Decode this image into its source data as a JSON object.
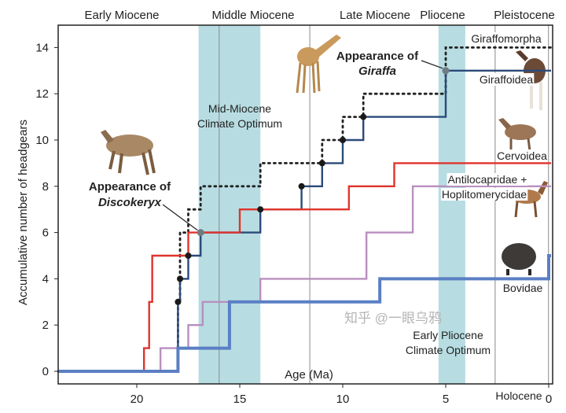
{
  "chart_data": {
    "type": "line",
    "step": true,
    "xlabel": "Age (Ma)",
    "ylabel": "Accumulative number of headgears",
    "xlim": [
      24,
      -0.2
    ],
    "ylim": [
      -0.55,
      15
    ],
    "x_reversed": true,
    "xticks": [
      20,
      15,
      10,
      5,
      0
    ],
    "yticks": [
      0,
      2,
      4,
      6,
      8,
      10,
      12,
      14
    ],
    "grid": false,
    "epochs": [
      {
        "label": "Early Miocene",
        "center": 20.5
      },
      {
        "label": "Middle Miocene",
        "center": 14.1
      },
      {
        "label": "Late Miocene",
        "center": 8.5
      },
      {
        "label": "Pliocene",
        "center": 4.5
      },
      {
        "label": "Pleistocene",
        "center": 1.5
      }
    ],
    "epoch_boundaries": [
      16.0,
      11.6,
      2.6,
      0.01
    ],
    "holocene_label": "Holocene",
    "climate_bands": [
      {
        "from": 17.0,
        "to": 14.0,
        "label1": "Mid-Miocene",
        "label2": "Climate Optimum"
      },
      {
        "from": 5.35,
        "to": 4.05,
        "label1": "Early Pliocene",
        "label2": "Climate Optimum"
      }
    ],
    "series": [
      {
        "name": "Giraffomorpha",
        "color": "#222222",
        "style": "dotted",
        "start": 0,
        "steps": [
          [
            18.0,
            3
          ],
          [
            17.9,
            6
          ],
          [
            17.5,
            7
          ],
          [
            16.9,
            8
          ],
          [
            14.0,
            9
          ],
          [
            11.0,
            10
          ],
          [
            10.0,
            11
          ],
          [
            9.0,
            12
          ],
          [
            5.0,
            14
          ]
        ]
      },
      {
        "name": "Giraffoidea",
        "color": "#2b4a7a",
        "style": "solid",
        "start": 0,
        "steps": [
          [
            18.0,
            3
          ],
          [
            17.9,
            4
          ],
          [
            17.5,
            5
          ],
          [
            16.9,
            6
          ],
          [
            14.0,
            7
          ],
          [
            12.0,
            8
          ],
          [
            11.0,
            9
          ],
          [
            10.0,
            10
          ],
          [
            9.0,
            11
          ],
          [
            5.0,
            13
          ]
        ]
      },
      {
        "name": "Cervoidea",
        "color": "#e0342c",
        "style": "solid",
        "start": 0,
        "steps": [
          [
            19.65,
            1
          ],
          [
            19.4,
            3
          ],
          [
            19.25,
            5
          ],
          [
            17.5,
            6
          ],
          [
            15.0,
            7
          ],
          [
            9.7,
            8
          ],
          [
            7.5,
            9
          ]
        ]
      },
      {
        "name": "Antilocapridae + Hoplitomerycidae",
        "name1": "Antilocapridae +",
        "name2": "Hoplitomerycidae",
        "color": "#b88fbf",
        "style": "solid",
        "start": 0,
        "steps": [
          [
            18.85,
            1
          ],
          [
            17.5,
            2
          ],
          [
            16.8,
            3
          ],
          [
            14.0,
            4
          ],
          [
            8.85,
            6
          ],
          [
            6.6,
            8
          ]
        ]
      },
      {
        "name": "Bovidae",
        "color": "#5b7fc4",
        "style": "thick",
        "start": 0,
        "steps": [
          [
            18.0,
            1
          ],
          [
            15.5,
            3
          ],
          [
            8.2,
            4
          ],
          [
            0.0,
            5
          ]
        ]
      }
    ],
    "markers": [
      [
        18.0,
        3
      ],
      [
        17.9,
        4
      ],
      [
        17.5,
        5
      ],
      [
        14.0,
        7
      ],
      [
        12.0,
        8
      ],
      [
        11.0,
        9
      ],
      [
        10.0,
        10
      ],
      [
        9.0,
        11
      ]
    ],
    "annotations": [
      {
        "line1": "Appearance of",
        "line2": "Discokeryx",
        "at": [
          16.9,
          6
        ]
      },
      {
        "line1": "Appearance of",
        "line2": "Giraffa",
        "at": [
          5.0,
          13
        ]
      }
    ],
    "band_color": "#b7dde2",
    "watermark": "知乎 @一眼乌鸦"
  }
}
